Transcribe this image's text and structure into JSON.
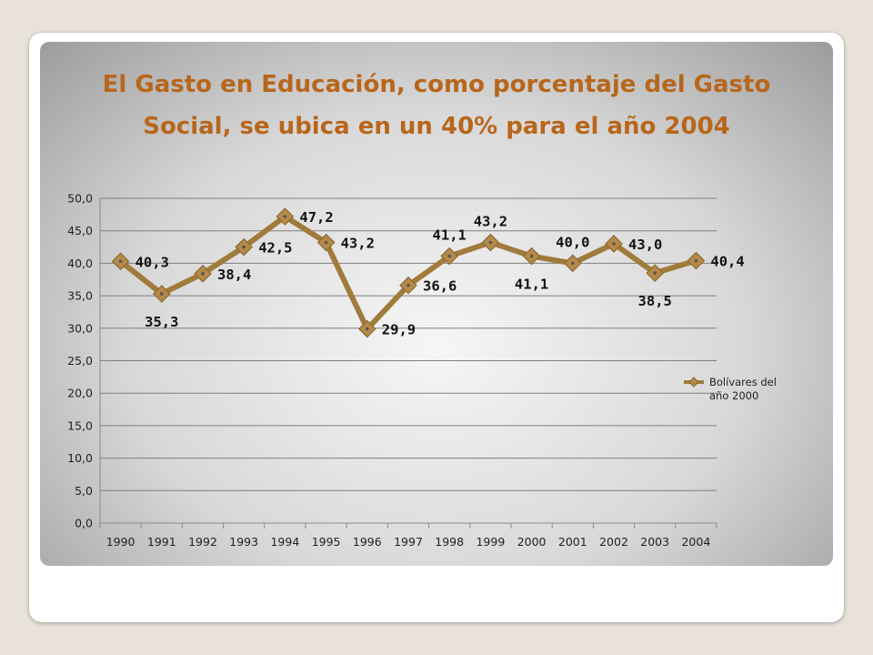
{
  "chart_data": {
    "type": "line",
    "title": "El Gasto en Educación, como porcentaje del Gasto Social, se ubica en un 40% para el año 2004",
    "categories": [
      "1990",
      "1991",
      "1992",
      "1993",
      "1994",
      "1995",
      "1996",
      "1997",
      "1998",
      "1999",
      "2000",
      "2001",
      "2002",
      "2003",
      "2004"
    ],
    "x_tick_labels": [
      "1990",
      "1991",
      "1992",
      "1993",
      "1994",
      "1995",
      "1996",
      "1997",
      "1998",
      "1999",
      "2000",
      "2001",
      "2002",
      "2003",
      "2004"
    ],
    "y_tick_labels": [
      "0,0",
      "5,0",
      "10,0",
      "15,0",
      "20,0",
      "25,0",
      "30,0",
      "35,0",
      "40,0",
      "45,0",
      "50,0"
    ],
    "ylim": [
      0,
      50
    ],
    "grid": true,
    "legend_position": "right",
    "series": [
      {
        "name": "Bolívares del año 2000",
        "legend_lines": [
          "Bolívares del",
          "año 2000"
        ],
        "values": [
          40.3,
          35.3,
          38.4,
          42.5,
          47.2,
          43.2,
          29.9,
          36.6,
          41.1,
          43.2,
          41.1,
          40.0,
          43.0,
          38.5,
          40.4
        ],
        "data_labels": [
          "40,3",
          "35,3",
          "38,4",
          "42,5",
          "47,2",
          "43,2",
          "29,9",
          "36,6",
          "41,1",
          "43,2",
          "41,1",
          "40,0",
          "43,0",
          "38,5",
          "40,4"
        ],
        "color": "#a07b3c",
        "marker_color": "#b58a48"
      }
    ]
  }
}
